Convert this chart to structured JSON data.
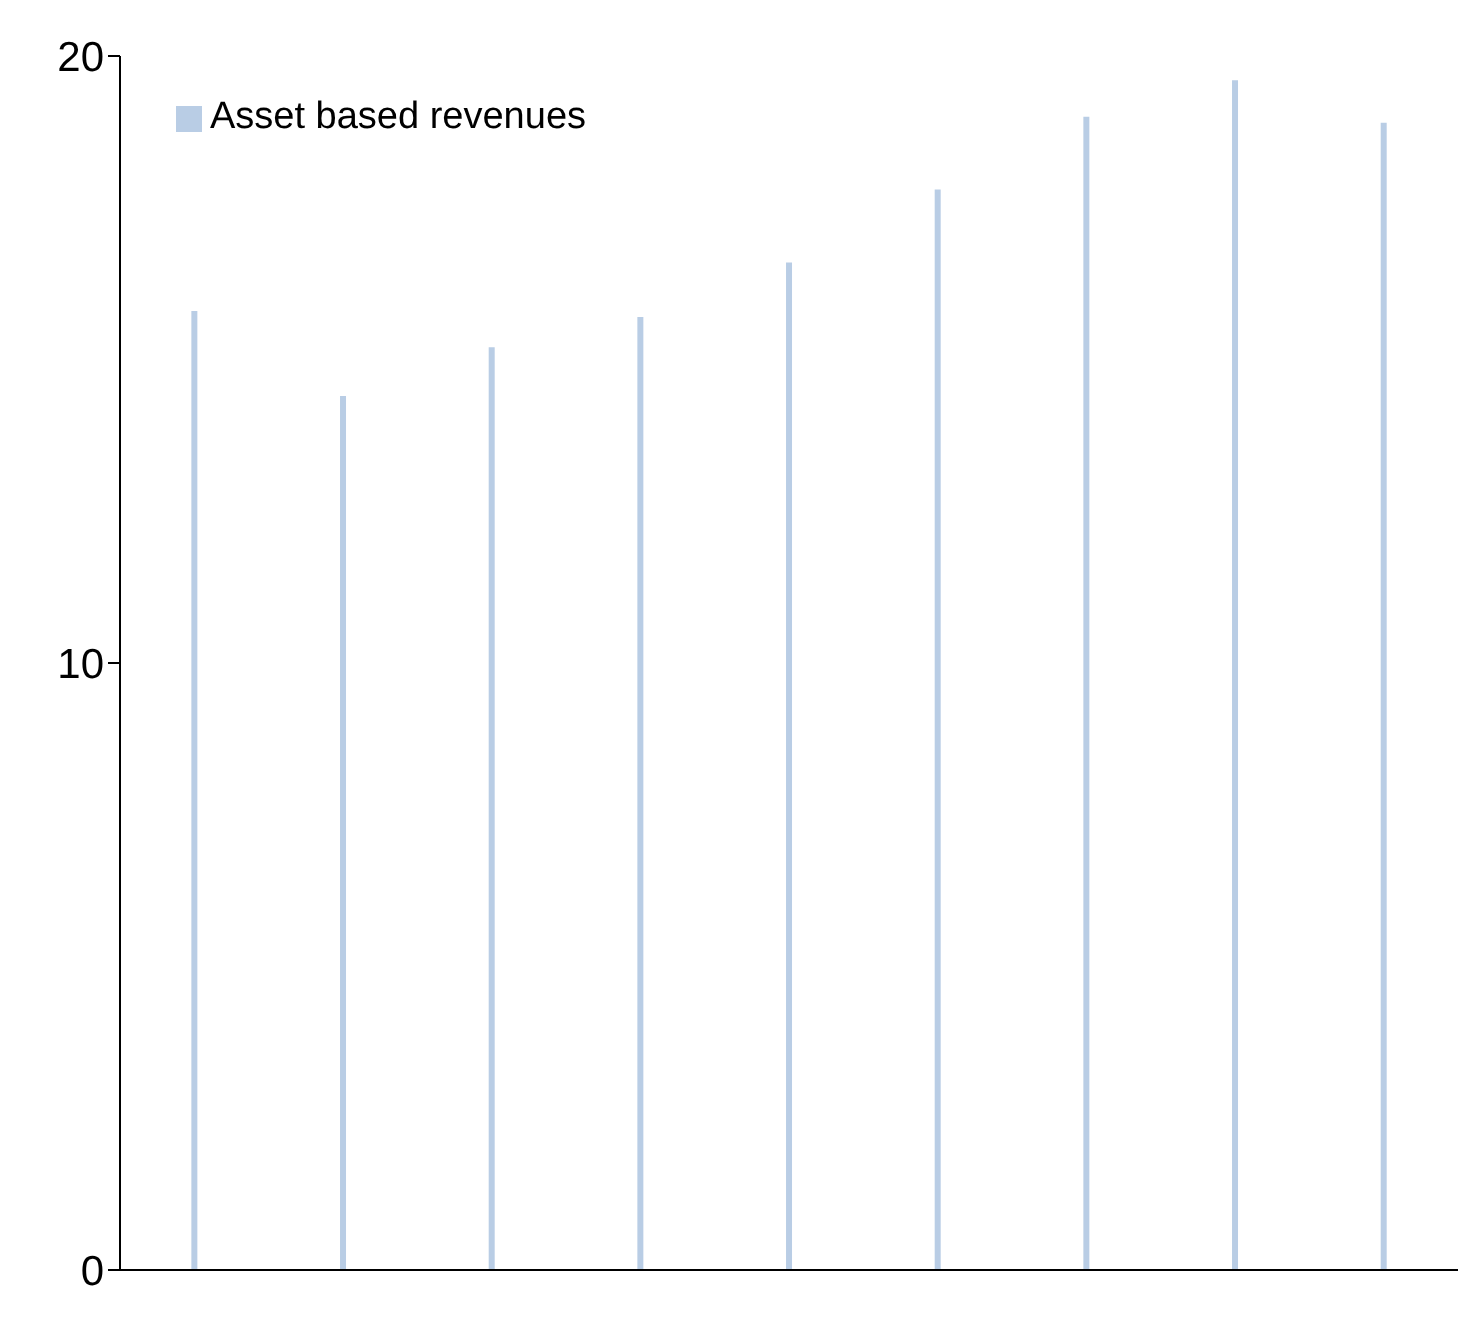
{
  "chart_data": {
    "type": "bar",
    "categories": [
      null,
      null,
      null,
      null,
      null,
      null,
      null,
      null,
      null
    ],
    "series": [
      {
        "name": "Asset based revenues",
        "color": "#b9cde5",
        "values": [
          15.8,
          14.4,
          15.2,
          15.7,
          16.6,
          17.8,
          19.0,
          19.6,
          18.9
        ]
      }
    ],
    "ylim": [
      0,
      20
    ],
    "yticks": [
      0,
      10,
      20
    ],
    "grid": false,
    "legend": "top left"
  }
}
